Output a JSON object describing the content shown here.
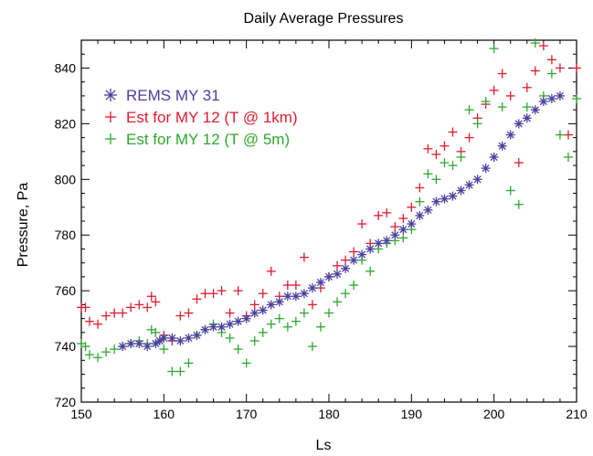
{
  "chart_data": {
    "type": "scatter",
    "title": "Daily Average Pressures",
    "xlabel": "Ls",
    "ylabel": "Pressure, Pa",
    "xlim": [
      150,
      210
    ],
    "ylim": [
      720,
      850
    ],
    "xticks": [
      150,
      160,
      170,
      180,
      190,
      200,
      210
    ],
    "yticks": [
      720,
      740,
      760,
      780,
      800,
      820,
      840
    ],
    "legend_position": "top-left",
    "grid": false,
    "series": [
      {
        "name": "REMS MY 31",
        "marker": "asterisk",
        "color": "#4a3f9f",
        "x": [
          155,
          156,
          157,
          158,
          159,
          159.5,
          160,
          161,
          162,
          163,
          164,
          165,
          166,
          167,
          168,
          169,
          170,
          171,
          172,
          173,
          174,
          175,
          176,
          177,
          178,
          179,
          180,
          181,
          182,
          183,
          184,
          185,
          186,
          187,
          188,
          189,
          190,
          191,
          192,
          193,
          194,
          195,
          196,
          197,
          198,
          199,
          200,
          201,
          202,
          203,
          204,
          205,
          206,
          207,
          208
        ],
        "y": [
          740,
          741,
          741,
          740,
          741,
          742,
          743,
          743,
          742,
          743,
          744,
          746,
          747,
          747,
          748,
          749,
          750,
          752,
          753,
          755,
          756,
          758,
          758,
          759,
          761,
          763,
          765,
          766,
          768,
          771,
          773,
          775,
          777,
          778,
          780,
          782,
          784,
          787,
          789,
          792,
          793,
          794,
          796,
          798,
          800,
          804,
          808,
          812,
          816,
          820,
          822,
          825,
          828,
          829,
          830
        ]
      },
      {
        "name": "Est for MY 12 (T @ 1km)",
        "marker": "plus",
        "color": "#dd1c2f",
        "x": [
          150,
          150.5,
          151,
          152,
          153,
          154,
          155,
          156,
          157,
          158,
          158.5,
          159,
          160,
          161,
          162,
          163,
          164,
          165,
          166,
          167,
          168,
          169,
          170,
          171,
          172,
          173,
          174,
          175,
          176,
          177,
          178,
          179,
          180,
          181,
          182,
          183,
          184,
          185,
          186,
          187,
          188,
          189,
          190,
          191,
          192,
          193,
          194,
          195,
          196,
          197,
          198,
          199,
          200,
          201,
          202,
          203,
          204,
          205,
          206,
          207,
          208,
          209,
          210
        ],
        "y": [
          754,
          754,
          749,
          748,
          751,
          752,
          752,
          754,
          755,
          754,
          758,
          756,
          744,
          742,
          751,
          752,
          757,
          759,
          759,
          760,
          752,
          760,
          751,
          755,
          759,
          767,
          758,
          762,
          762,
          772,
          755,
          761,
          765,
          769,
          771,
          774,
          784,
          777,
          787,
          788,
          783,
          786,
          790,
          797,
          811,
          809,
          812,
          817,
          810,
          815,
          822,
          827,
          832,
          838,
          830,
          806,
          833,
          839,
          848,
          843,
          840,
          816,
          840
        ]
      },
      {
        "name": "Est for MY 12 (T @ 5m)",
        "marker": "plus",
        "color": "#2ea82e",
        "x": [
          150,
          150.5,
          151,
          152,
          153,
          154,
          155,
          156,
          157,
          158,
          158.5,
          159,
          160,
          161,
          162,
          163,
          164,
          165,
          166,
          167,
          168,
          169,
          170,
          171,
          172,
          173,
          174,
          175,
          176,
          177,
          178,
          179,
          180,
          181,
          182,
          183,
          184,
          185,
          186,
          187,
          188,
          189,
          190,
          191,
          192,
          193,
          194,
          195,
          196,
          197,
          198,
          199,
          200,
          201,
          202,
          203,
          204,
          205,
          206,
          207,
          208,
          209,
          210
        ],
        "y": [
          741,
          740,
          737,
          736,
          738,
          739,
          740,
          741,
          742,
          741,
          746,
          745,
          739,
          731,
          731,
          734,
          744,
          746,
          748,
          745,
          743,
          739,
          734,
          742,
          745,
          748,
          750,
          747,
          749,
          752,
          740,
          747,
          752,
          756,
          759,
          762,
          771,
          767,
          775,
          777,
          778,
          779,
          782,
          792,
          802,
          800,
          806,
          805,
          808,
          825,
          820,
          828,
          847,
          826,
          796,
          791,
          826,
          849,
          830,
          838,
          816,
          808,
          829
        ]
      }
    ]
  }
}
